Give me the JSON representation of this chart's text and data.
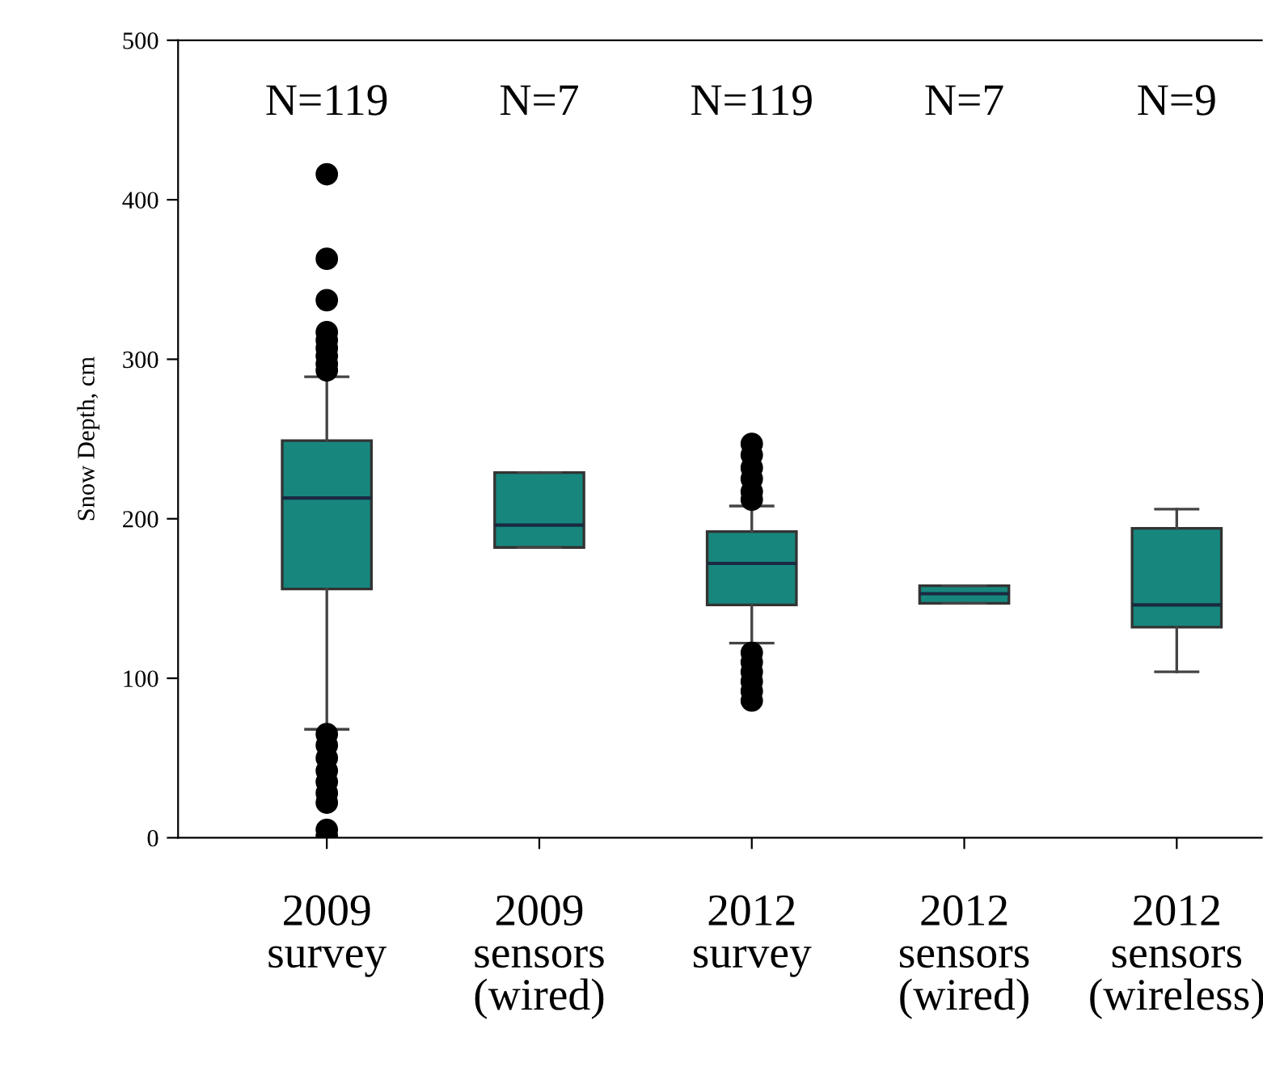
{
  "chart_data": {
    "type": "box",
    "ylabel": "Snow Depth, cm",
    "categories": [
      "2009\nsurvey",
      "2009\nsensors\n(wired)",
      "2012\nsurvey",
      "2012\nsensors\n(wired)",
      "2012\nsensors\n(wireless)"
    ],
    "boxes": [
      {
        "low": 68,
        "q1": 156,
        "median": 213,
        "q3": 249,
        "high": 289,
        "outliers": [
          416,
          363,
          337,
          317,
          312,
          307,
          302,
          297,
          293,
          65,
          58,
          50,
          42,
          35,
          28,
          22,
          5,
          1
        ]
      },
      {
        "low": 182,
        "q1": 182,
        "median": 196,
        "q3": 229,
        "high": 229
      },
      {
        "low": 122,
        "q1": 146,
        "median": 172,
        "q3": 192,
        "high": 208,
        "outliers": [
          247,
          240,
          232,
          225,
          217,
          212,
          116,
          110,
          104,
          98,
          92,
          86
        ]
      },
      {
        "low": 147,
        "q1": 147,
        "median": 153,
        "q3": 158,
        "high": 158
      },
      {
        "low": 104,
        "q1": 132,
        "median": 146,
        "q3": 194,
        "high": 206
      }
    ],
    "color": "#17877e",
    "ylim": [
      0,
      500
    ],
    "yticks": [
      0,
      100,
      200,
      300,
      400,
      500
    ],
    "grid": false,
    "annotations": [
      "N=119",
      "N=7",
      "N=119",
      "N=7",
      "N=9"
    ]
  }
}
